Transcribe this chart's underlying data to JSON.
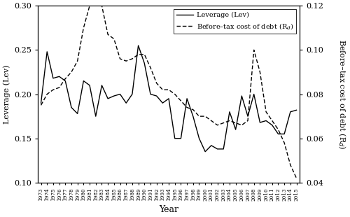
{
  "years": [
    1973,
    1974,
    1975,
    1976,
    1977,
    1978,
    1979,
    1980,
    1981,
    1982,
    1983,
    1984,
    1985,
    1986,
    1987,
    1988,
    1989,
    1990,
    1991,
    1992,
    1993,
    1994,
    1995,
    1996,
    1997,
    1998,
    1999,
    2000,
    2001,
    2002,
    2003,
    2004,
    2005,
    2006,
    2007,
    2008,
    2009,
    2010,
    2011,
    2012,
    2013,
    2014,
    2015
  ],
  "leverage": [
    0.19,
    0.248,
    0.218,
    0.22,
    0.215,
    0.185,
    0.178,
    0.215,
    0.21,
    0.175,
    0.21,
    0.195,
    0.198,
    0.2,
    0.19,
    0.2,
    0.255,
    0.235,
    0.2,
    0.198,
    0.19,
    0.195,
    0.15,
    0.15,
    0.195,
    0.175,
    0.15,
    0.135,
    0.142,
    0.138,
    0.138,
    0.18,
    0.16,
    0.198,
    0.175,
    0.2,
    0.168,
    0.17,
    0.165,
    0.155,
    0.155,
    0.18,
    0.182
  ],
  "rd": [
    0.075,
    0.08,
    0.082,
    0.083,
    0.087,
    0.09,
    0.095,
    0.11,
    0.12,
    0.122,
    0.12,
    0.107,
    0.105,
    0.096,
    0.095,
    0.096,
    0.098,
    0.098,
    0.092,
    0.085,
    0.082,
    0.082,
    0.08,
    0.077,
    0.074,
    0.073,
    0.07,
    0.07,
    0.068,
    0.066,
    0.067,
    0.068,
    0.067,
    0.066,
    0.068,
    0.1,
    0.09,
    0.072,
    0.068,
    0.064,
    0.058,
    0.048,
    0.042
  ],
  "lev_ylim": [
    0.1,
    0.3
  ],
  "rd_ylim": [
    0.04,
    0.12
  ],
  "lev_yticks": [
    0.1,
    0.15,
    0.2,
    0.25,
    0.3
  ],
  "rd_yticks": [
    0.04,
    0.06,
    0.08,
    0.1,
    0.12
  ],
  "xlabel": "Year",
  "ylabel_left": "Leverage (Lev)",
  "ylabel_right": "Before–tax cost of debt (R",
  "line_color": "black",
  "fig_width": 5.0,
  "fig_height": 3.1,
  "dpi": 100
}
